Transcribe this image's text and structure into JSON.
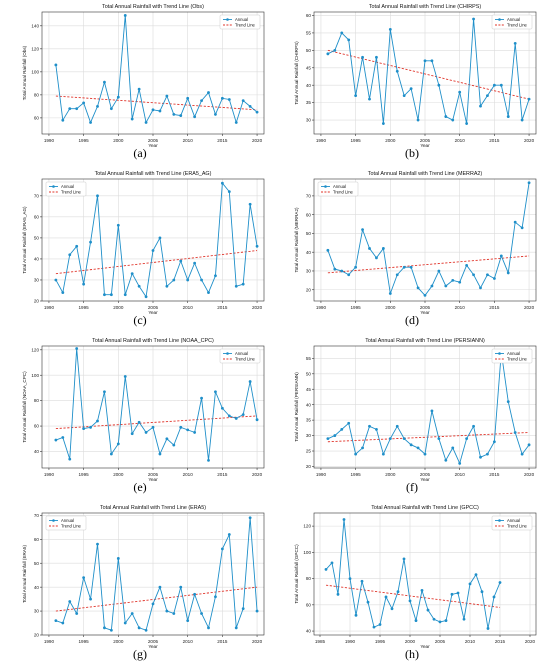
{
  "figure": {
    "panels": [
      {
        "caption": "(a)",
        "title": "Total Annual Rainfall with Trend Line (Obs)",
        "xlabel": "Year",
        "ylabel": "Total Annual Rainfall (Obs)"
      },
      {
        "caption": "(b)",
        "title": "Total Annual Rainfall with Trend Line (CHIRPS)",
        "xlabel": "Year",
        "ylabel": "Total Annual Rainfall (CHIRPS)"
      },
      {
        "caption": "(c)",
        "title": "Total Annual Rainfall with Trend Line (ERA5_AG)",
        "xlabel": "Year",
        "ylabel": "Total Annual Rainfall (ERA5_AG)"
      },
      {
        "caption": "(d)",
        "title": "Total Annual Rainfall with Trend Line (MERRA2)",
        "xlabel": "Year",
        "ylabel": "Total Annual Rainfall (MERRA2)"
      },
      {
        "caption": "(e)",
        "title": "Total Annual Rainfall with Trend Line (NOAA_CPC)",
        "xlabel": "Year",
        "ylabel": "Total Annual Rainfall (NOAA_CPC)"
      },
      {
        "caption": "(f)",
        "title": "Total Annual Rainfall with Trend Line (PERSIANN)",
        "xlabel": "Year",
        "ylabel": "Total Annual Rainfall (PERSIANN)"
      },
      {
        "caption": "(g)",
        "title": "Total Annual Rainfall with Trend Line (ERA5)",
        "xlabel": "Year",
        "ylabel": "Total Annual Rainfall (ERA5)"
      },
      {
        "caption": "(h)",
        "title": "Total Annual Rainfall with Trend Line (GPCC)",
        "xlabel": "Year",
        "ylabel": "Total Annual Rainfall (GPCC)"
      }
    ]
  },
  "chart_data": [
    {
      "type": "line",
      "title": "Total Annual Rainfall with Trend Line (Obs)",
      "xlabel": "Year",
      "ylabel": "Total Annual Rainfall (Obs)",
      "xlim": [
        1989,
        2021
      ],
      "ylim": [
        46,
        152
      ],
      "xticks": [
        1990,
        1995,
        2000,
        2005,
        2010,
        2015,
        2020
      ],
      "yticks": [
        60,
        80,
        100,
        120,
        140
      ],
      "x_start": 1991,
      "legend": [
        "Annual",
        "Trend Line"
      ],
      "legend_position": "top-right",
      "grid": true,
      "series": [
        {
          "name": "Annual",
          "values": [
            106,
            58,
            68,
            68,
            73,
            56,
            70,
            91,
            68,
            78,
            149,
            59,
            85,
            56,
            67,
            66,
            79,
            63,
            62,
            77,
            61,
            75,
            82,
            63,
            77,
            76,
            56,
            75,
            70,
            65
          ]
        }
      ],
      "trend": {
        "name": "Trend Line",
        "start": 79,
        "end": 67
      },
      "colors": {
        "series": "#1f8fc9",
        "trend": "#e0342a"
      }
    },
    {
      "type": "line",
      "title": "Total Annual Rainfall with Trend Line (CHIRPS)",
      "xlabel": "Year",
      "ylabel": "Total Annual Rainfall (CHIRPS)",
      "xlim": [
        1989,
        2021
      ],
      "ylim": [
        26,
        61
      ],
      "xticks": [
        1990,
        1995,
        2000,
        2005,
        2010,
        2015,
        2020
      ],
      "yticks": [
        30,
        35,
        40,
        45,
        50,
        55,
        60
      ],
      "x_start": 1991,
      "legend": [
        "Annual",
        "Trend Line"
      ],
      "legend_position": "top-right",
      "grid": true,
      "series": [
        {
          "name": "Annual",
          "values": [
            49,
            50,
            55,
            53,
            37,
            48,
            36,
            48,
            29,
            56,
            44,
            37,
            39,
            30,
            47,
            47,
            40,
            31,
            30,
            38,
            29,
            59,
            34,
            37,
            40,
            40,
            31,
            52,
            30,
            36
          ]
        }
      ],
      "trend": {
        "name": "Trend Line",
        "start": 50,
        "end": 36
      },
      "colors": {
        "series": "#1f8fc9",
        "trend": "#e0342a"
      }
    },
    {
      "type": "line",
      "title": "Total Annual Rainfall with Trend Line (ERA5_AG)",
      "xlabel": "Year",
      "ylabel": "Total Annual Rainfall (ERA5_AG)",
      "xlim": [
        1989,
        2021
      ],
      "ylim": [
        20,
        78
      ],
      "xticks": [
        1990,
        1995,
        2000,
        2005,
        2010,
        2015,
        2020
      ],
      "yticks": [
        20,
        30,
        40,
        50,
        60,
        70
      ],
      "x_start": 1991,
      "legend": [
        "Annual",
        "Trend Line"
      ],
      "legend_position": "top-left",
      "grid": true,
      "series": [
        {
          "name": "Annual",
          "values": [
            30,
            24,
            42,
            46,
            28,
            48,
            70,
            23,
            23,
            56,
            23,
            33,
            27,
            22,
            44,
            50,
            27,
            30,
            39,
            30,
            38,
            30,
            24,
            32,
            76,
            72,
            27,
            28,
            66,
            46
          ]
        }
      ],
      "trend": {
        "name": "Trend Line",
        "start": 33,
        "end": 44
      },
      "colors": {
        "series": "#1f8fc9",
        "trend": "#e0342a"
      }
    },
    {
      "type": "line",
      "title": "Total Annual Rainfall with Trend Line (MERRA2)",
      "xlabel": "Year",
      "ylabel": "Total Annual Rainfall (MERRA2)",
      "xlim": [
        1989,
        2021
      ],
      "ylim": [
        14,
        79
      ],
      "xticks": [
        1990,
        1995,
        2000,
        2005,
        2010,
        2015,
        2020
      ],
      "yticks": [
        20,
        30,
        40,
        50,
        60,
        70
      ],
      "x_start": 1991,
      "legend": [
        "Annual",
        "Trend Line"
      ],
      "legend_position": "top-left",
      "grid": true,
      "series": [
        {
          "name": "Annual",
          "values": [
            41,
            31,
            30,
            28,
            32,
            52,
            42,
            37,
            42,
            18,
            28,
            32,
            32,
            21,
            17,
            22,
            30,
            22,
            25,
            24,
            33,
            28,
            21,
            28,
            26,
            38,
            29,
            56,
            53,
            77
          ]
        }
      ],
      "trend": {
        "name": "Trend Line",
        "start": 29,
        "end": 38
      },
      "colors": {
        "series": "#1f8fc9",
        "trend": "#e0342a"
      }
    },
    {
      "type": "line",
      "title": "Total Annual Rainfall with Trend Line (NOAA_CPC)",
      "xlabel": "Year",
      "ylabel": "Total Annual Rainfall (NOAA_CPC)",
      "xlim": [
        1989,
        2021
      ],
      "ylim": [
        27,
        123
      ],
      "xticks": [
        1990,
        1995,
        2000,
        2005,
        2010,
        2015,
        2020
      ],
      "yticks": [
        40,
        60,
        80,
        100,
        120
      ],
      "x_start": 1991,
      "legend": [
        "Annual",
        "Trend Line"
      ],
      "legend_position": "top-right",
      "grid": true,
      "series": [
        {
          "name": "Annual",
          "values": [
            49,
            51,
            34,
            121,
            58,
            59,
            64,
            87,
            38,
            46,
            99,
            54,
            63,
            55,
            59,
            38,
            50,
            45,
            59,
            57,
            55,
            82,
            33,
            87,
            74,
            68,
            66,
            69,
            95,
            65
          ]
        }
      ],
      "trend": {
        "name": "Trend Line",
        "start": 58,
        "end": 68
      },
      "colors": {
        "series": "#1f8fc9",
        "trend": "#e0342a"
      }
    },
    {
      "type": "line",
      "title": "Total Annual Rainfall with Trend Line (PERSIANN)",
      "xlabel": "Year",
      "ylabel": "Total Annual Rainfall (PERSIANN)",
      "xlim": [
        1989,
        2021
      ],
      "ylim": [
        19.5,
        59
      ],
      "xticks": [
        1990,
        1995,
        2000,
        2005,
        2010,
        2015,
        2020
      ],
      "yticks": [
        20,
        25,
        30,
        35,
        40,
        45,
        50,
        55
      ],
      "x_start": 1991,
      "legend": [
        "Annual",
        "Trend Line"
      ],
      "legend_position": "top-right",
      "grid": true,
      "series": [
        {
          "name": "Annual",
          "values": [
            29,
            30,
            32,
            34,
            24,
            26,
            33,
            32,
            24,
            29,
            33,
            29,
            27,
            26,
            24,
            38,
            29,
            22,
            26,
            21,
            29,
            33,
            23,
            24,
            28,
            57,
            41,
            31,
            24,
            27
          ]
        }
      ],
      "trend": {
        "name": "Trend Line",
        "start": 28,
        "end": 31
      },
      "colors": {
        "series": "#1f8fc9",
        "trend": "#e0342a"
      }
    },
    {
      "type": "line",
      "title": "Total Annual Rainfall with Trend Line (ERA5)",
      "xlabel": "Year",
      "ylabel": "Total Annual Rainfall (ERA5)",
      "xlim": [
        1989,
        2021
      ],
      "ylim": [
        20,
        71
      ],
      "xticks": [
        1990,
        1995,
        2000,
        2005,
        2010,
        2015,
        2020
      ],
      "yticks": [
        20,
        30,
        40,
        50,
        60,
        70
      ],
      "x_start": 1991,
      "legend": [
        "Annual",
        "Trend Line"
      ],
      "legend_position": "top-left",
      "grid": true,
      "series": [
        {
          "name": "Annual",
          "values": [
            26,
            25,
            34,
            29,
            44,
            35,
            58,
            23,
            22,
            52,
            25,
            29,
            23,
            22,
            33,
            40,
            30,
            29,
            40,
            26,
            37,
            29,
            23,
            36,
            56,
            62,
            23,
            31,
            69,
            30
          ]
        }
      ],
      "trend": {
        "name": "Trend Line",
        "start": 30,
        "end": 40
      },
      "colors": {
        "series": "#1f8fc9",
        "trend": "#e0342a"
      }
    },
    {
      "type": "line",
      "title": "Total Annual Rainfall with Trend Line (GPCC)",
      "xlabel": "Year",
      "ylabel": "Total Annual Rainfall (GPCC)",
      "xlim": [
        1984,
        2021
      ],
      "ylim": [
        37,
        130
      ],
      "xticks": [
        1985,
        1990,
        1995,
        2000,
        2005,
        2010,
        2015,
        2020
      ],
      "yticks": [
        40,
        60,
        80,
        100,
        120
      ],
      "x_start": 1986,
      "legend": [
        "Annual",
        "Trend Line"
      ],
      "legend_position": "top-right",
      "grid": true,
      "series": [
        {
          "name": "Annual",
          "values": [
            87,
            92,
            68,
            125,
            80,
            52,
            78,
            62,
            43,
            45,
            66,
            57,
            70,
            95,
            63,
            48,
            71,
            56,
            49,
            47,
            48,
            68,
            69,
            49,
            76,
            83,
            70,
            42,
            66,
            77
          ]
        }
      ],
      "trend": {
        "name": "Trend Line",
        "start": 75,
        "end": 58
      },
      "colors": {
        "series": "#1f8fc9",
        "trend": "#e0342a"
      }
    }
  ]
}
